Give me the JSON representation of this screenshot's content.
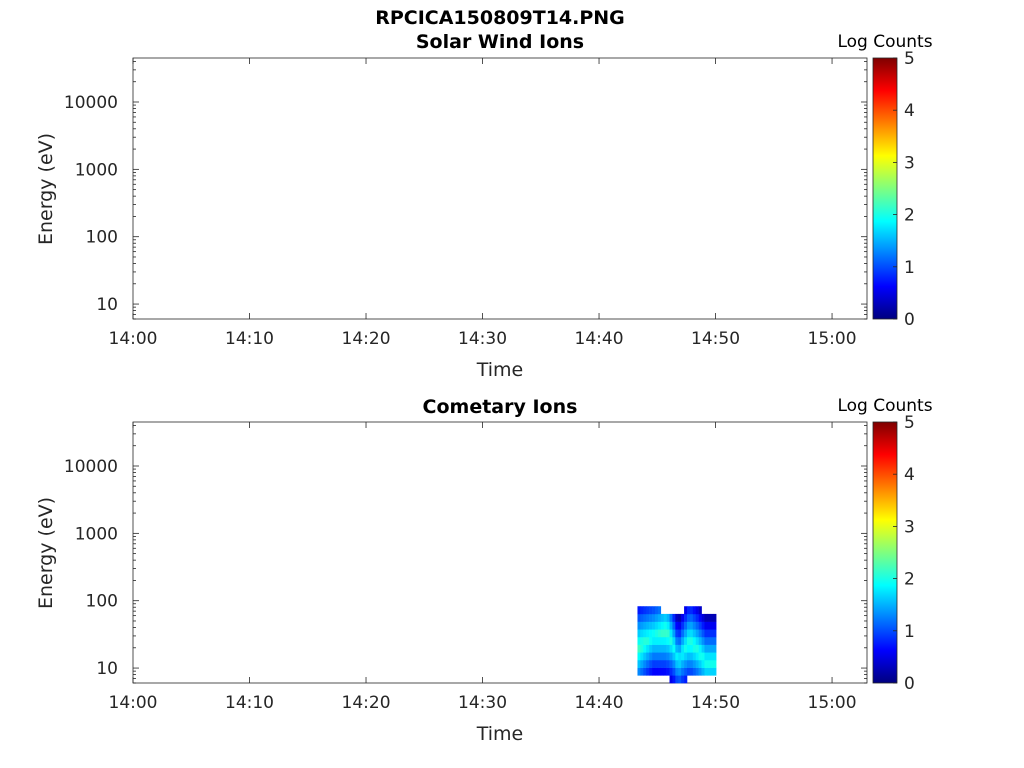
{
  "figure_title": "RPCICA150809T14.PNG",
  "colors": {
    "colormap": [
      "#00007f",
      "#0000ff",
      "#007fff",
      "#00ffff",
      "#7fff7f",
      "#ffff00",
      "#ff7f00",
      "#ff0000",
      "#7f0000"
    ],
    "axes": "#262626",
    "background": "#ffffff"
  },
  "chart_data": [
    {
      "type": "heatmap",
      "title": "Solar Wind Ions",
      "xlabel": "Time",
      "ylabel": "Energy (eV)",
      "x_scale": "time",
      "y_scale": "log",
      "x_range": [
        "14:00",
        "15:03"
      ],
      "y_range": [
        6,
        45000
      ],
      "x_ticks": [
        "14:00",
        "14:10",
        "14:20",
        "14:30",
        "14:40",
        "14:50",
        "15:00"
      ],
      "y_ticks": [
        "10",
        "100",
        "1000",
        "10000"
      ],
      "colorbar": {
        "label": "Log Counts",
        "range": [
          0,
          5
        ],
        "ticks": [
          "0",
          "1",
          "2",
          "3",
          "4",
          "5"
        ]
      },
      "data": []
    },
    {
      "type": "heatmap",
      "title": "Cometary Ions",
      "xlabel": "Time",
      "ylabel": "Energy (eV)",
      "x_scale": "time",
      "y_scale": "log",
      "x_range": [
        "14:00",
        "15:03"
      ],
      "y_range": [
        6,
        45000
      ],
      "x_ticks": [
        "14:00",
        "14:10",
        "14:20",
        "14:30",
        "14:40",
        "14:50",
        "15:00"
      ],
      "y_ticks": [
        "10",
        "100",
        "1000",
        "10000"
      ],
      "colorbar": {
        "label": "Log Counts",
        "range": [
          0,
          5
        ],
        "ticks": [
          "0",
          "1",
          "2",
          "3",
          "4",
          "5"
        ]
      },
      "data": [
        {
          "time": "14:43:20",
          "e_min": 8,
          "e_max": 80,
          "peak_energy": 20,
          "peak_log_counts": 2.2
        },
        {
          "time": "14:44:30",
          "e_min": 8,
          "e_max": 75,
          "peak_energy": 30,
          "peak_log_counts": 2.0
        },
        {
          "time": "14:45:40",
          "e_min": 7,
          "e_max": 70,
          "peak_energy": 35,
          "peak_log_counts": 2.2
        },
        {
          "time": "14:46:40",
          "e_min": 6,
          "e_max": 60,
          "peak_energy": 12,
          "peak_log_counts": 1.8
        },
        {
          "time": "14:47:40",
          "e_min": 7,
          "e_max": 80,
          "peak_energy": 25,
          "peak_log_counts": 2.1
        },
        {
          "time": "14:49:00",
          "e_min": 8,
          "e_max": 70,
          "peak_energy": 12,
          "peak_log_counts": 2.0
        }
      ]
    }
  ]
}
